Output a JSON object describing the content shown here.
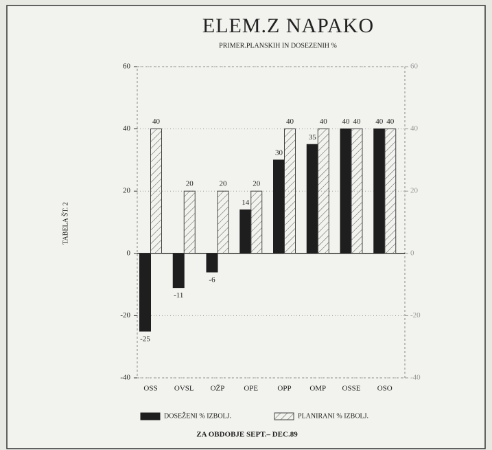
{
  "chart_data": {
    "type": "bar",
    "title": "ELEM.Z NAPAKO",
    "subtitle": "PRIMER.PLANSKIH IN DOSEZENIH %",
    "y_label": "TABELA ŠT. 2",
    "footer": "ZA OBDOBJE SEPT.– DEC.89",
    "categories": [
      "OSS",
      "OVSL",
      "OŽP",
      "OPE",
      "OPP",
      "OMP",
      "OSSE",
      "OSO"
    ],
    "series": [
      {
        "name": "DOSEŽENI % IZBOLJ.",
        "color": "#1e1e1e",
        "pattern": "solid",
        "values": [
          -25,
          -11,
          -6,
          14,
          30,
          35,
          40,
          40
        ]
      },
      {
        "name": "PLANIRANI % IZBOLJ.",
        "color": "#444444",
        "pattern": "hatch",
        "values": [
          40,
          20,
          20,
          20,
          40,
          40,
          40,
          40
        ]
      }
    ],
    "ylim": [
      -40,
      60
    ],
    "yticks": [
      -40,
      -20,
      0,
      20,
      40,
      60
    ],
    "y2lim": [
      -40,
      60
    ],
    "y2ticks": [
      -40,
      -20,
      0,
      20,
      40,
      60
    ],
    "grid": true
  }
}
